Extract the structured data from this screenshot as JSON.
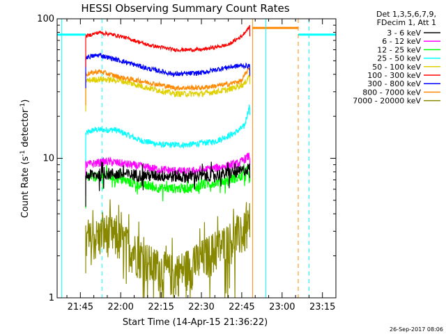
{
  "chart_data": {
    "type": "line",
    "title": "HESSI Observing Summary Count Rates",
    "xlabel": "Start Time (14-Apr-15 21:36:22)",
    "ylabel": "Count Rate (s",
    "ylabel_sup": "-1",
    "ylabel_tail": " detector",
    "ylabel_sup2": "-1",
    "ylabel_close": ")",
    "yscale": "log",
    "ylim": [
      1,
      100
    ],
    "xlim": [
      "21:36:22",
      "23:20:00"
    ],
    "x_ticks": [
      "21:45",
      "22:00",
      "22:15",
      "22:30",
      "22:45",
      "23:00",
      "23:15"
    ],
    "y_ticks": [
      "1",
      "10",
      "100"
    ],
    "grid": false,
    "legend": {
      "placement": "right",
      "header": [
        "Det 1,3,5,6,7,9,",
        "FDecim 1, Att 1"
      ],
      "entries": [
        {
          "label": "3 - 6 keV",
          "color": "#000000"
        },
        {
          "label": "6 - 12 keV",
          "color": "#ff00ff"
        },
        {
          "label": "12 - 25 keV",
          "color": "#00ff00"
        },
        {
          "label": "25 - 50 keV",
          "color": "#00ffff"
        },
        {
          "label": "50 - 100 keV",
          "color": "#e0d000"
        },
        {
          "label": "100 - 300 keV",
          "color": "#ff0000"
        },
        {
          "label": "300 - 800 keV",
          "color": "#0000ff"
        },
        {
          "label": "800 - 7000 keV",
          "color": "#ff8800"
        },
        {
          "label": "7000 - 20000 keV",
          "color": "#888800"
        }
      ]
    },
    "series": [
      {
        "name": "3 - 6 keV",
        "color": "#000000",
        "x": [
          "21:47",
          "21:55",
          "22:05",
          "22:15",
          "22:25",
          "22:35",
          "22:44",
          "22:48"
        ],
        "y": [
          7.5,
          7.8,
          7.6,
          7.5,
          7.4,
          7.6,
          8.0,
          8.5
        ],
        "noise": 0.1,
        "spiky": true
      },
      {
        "name": "6 - 12 keV",
        "color": "#ff00ff",
        "x": [
          "21:47",
          "21:55",
          "22:05",
          "22:15",
          "22:25",
          "22:35",
          "22:44",
          "22:48"
        ],
        "y": [
          9.0,
          9.5,
          8.9,
          8.3,
          8.0,
          8.5,
          9.2,
          10.5
        ],
        "noise": 0.07
      },
      {
        "name": "12 - 25 keV",
        "color": "#00ff00",
        "x": [
          "21:47",
          "21:55",
          "22:05",
          "22:15",
          "22:25",
          "22:35",
          "22:44",
          "22:48"
        ],
        "y": [
          7.3,
          7.5,
          6.6,
          6.1,
          6.1,
          6.7,
          7.3,
          8.0
        ],
        "noise": 0.08,
        "spiky": true
      },
      {
        "name": "25 - 50 keV",
        "color": "#00ffff",
        "x": [
          "21:47",
          "21:50",
          "21:58",
          "22:07",
          "22:15",
          "22:25",
          "22:35",
          "22:42",
          "22:46",
          "22:48"
        ],
        "y": [
          15,
          16,
          16,
          13.5,
          12.5,
          12.5,
          13.2,
          15,
          17,
          24
        ],
        "noise": 0.05
      },
      {
        "name": "50 - 100 keV",
        "color": "#e0d000",
        "x": [
          "21:47",
          "21:52",
          "22:00",
          "22:10",
          "22:20",
          "22:30",
          "22:40",
          "22:46",
          "22:48"
        ],
        "y": [
          36,
          37,
          36,
          32,
          29,
          29,
          31,
          34,
          40
        ],
        "noise": 0.05
      },
      {
        "name": "100 - 300 keV",
        "color": "#ff0000",
        "x": [
          "21:47",
          "21:52",
          "22:00",
          "22:10",
          "22:20",
          "22:30",
          "22:40",
          "22:45",
          "22:48"
        ],
        "y": [
          75,
          80,
          75,
          65,
          60,
          60,
          65,
          75,
          88
        ],
        "noise": 0.03
      },
      {
        "name": "300 - 800 keV",
        "color": "#0000ff",
        "x": [
          "21:47",
          "21:52",
          "22:00",
          "22:10",
          "22:20",
          "22:30",
          "22:40",
          "22:44",
          "22:48"
        ],
        "y": [
          53,
          55,
          50,
          44,
          40,
          41,
          45,
          46,
          46
        ],
        "noise": 0.04
      },
      {
        "name": "800 - 7000 keV",
        "color": "#ff8800",
        "x": [
          "21:47",
          "21:52",
          "22:00",
          "22:10",
          "22:20",
          "22:30",
          "22:40",
          "22:45",
          "22:48"
        ],
        "y": [
          40,
          42,
          38,
          35,
          32,
          32,
          34,
          36,
          45
        ],
        "noise": 0.04
      },
      {
        "name": "7000 - 20000 keV",
        "color": "#888800",
        "x": [
          "21:47",
          "21:55",
          "22:05",
          "22:12",
          "22:20",
          "22:28",
          "22:36",
          "22:42",
          "22:48"
        ],
        "y": [
          2.5,
          3.0,
          2.2,
          1.7,
          1.5,
          1.8,
          2.3,
          2.7,
          3.2
        ],
        "noise": 0.35,
        "spiky": true
      }
    ],
    "flat_segments": [
      {
        "color": "#00ffff",
        "x": [
          "21:36:22",
          "21:47"
        ],
        "y": 77
      },
      {
        "color": "#ff8800",
        "x": [
          "22:49",
          "23:06"
        ],
        "y": 86
      },
      {
        "color": "#00ffff",
        "x": [
          "23:06",
          "23:20"
        ],
        "y": 77
      }
    ],
    "vertical_markers": [
      {
        "color": "#00ffff",
        "style": "solid",
        "x": "21:38"
      },
      {
        "color": "#00ffff",
        "style": "dashed",
        "x": "21:53"
      },
      {
        "color": "#ff8800",
        "style": "solid",
        "x": "22:49"
      },
      {
        "color": "#00ffff",
        "style": "solid",
        "x": "22:54"
      },
      {
        "color": "#ff8800",
        "style": "dashed",
        "x": "23:06"
      },
      {
        "color": "#00ffff",
        "style": "dashed",
        "x": "23:10"
      }
    ]
  },
  "footer": {
    "timestamp": "26-Sep-2017 08:06"
  }
}
